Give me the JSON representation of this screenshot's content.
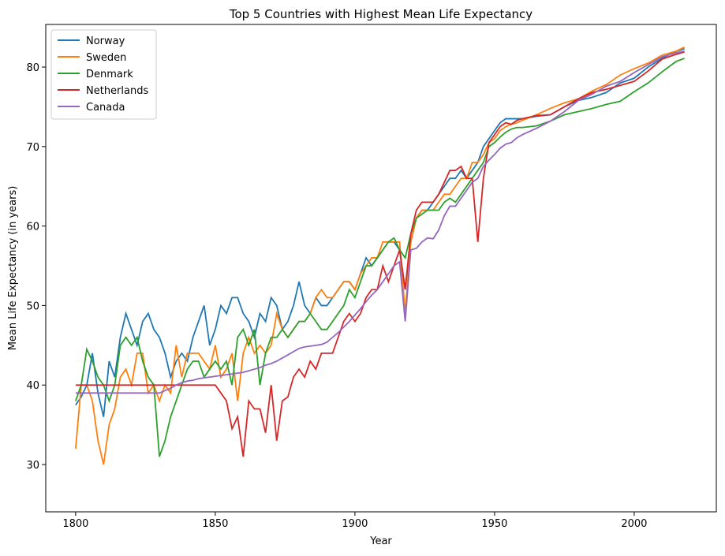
{
  "chart_data": {
    "type": "line",
    "title": "Top 5 Countries with Highest Mean Life Expectancy",
    "x_label": "Year",
    "y_label": "Mean Life Expectancy (in years)",
    "x": [
      1800,
      1802,
      1804,
      1806,
      1808,
      1810,
      1812,
      1814,
      1816,
      1818,
      1820,
      1822,
      1824,
      1826,
      1828,
      1830,
      1832,
      1834,
      1836,
      1838,
      1840,
      1842,
      1844,
      1846,
      1848,
      1850,
      1852,
      1854,
      1856,
      1858,
      1860,
      1862,
      1864,
      1866,
      1868,
      1870,
      1872,
      1874,
      1876,
      1878,
      1880,
      1882,
      1884,
      1886,
      1888,
      1890,
      1892,
      1894,
      1896,
      1898,
      1900,
      1902,
      1904,
      1906,
      1908,
      1910,
      1912,
      1914,
      1916,
      1918,
      1920,
      1922,
      1924,
      1926,
      1928,
      1930,
      1932,
      1934,
      1936,
      1938,
      1940,
      1942,
      1944,
      1946,
      1948,
      1950,
      1952,
      1954,
      1956,
      1958,
      1960,
      1965,
      1970,
      1975,
      1980,
      1985,
      1990,
      1995,
      2000,
      2005,
      2010,
      2015,
      2018
    ],
    "series": [
      {
        "name": "Norway",
        "color": "#1f77b4",
        "values": [
          37.5,
          38.5,
          40,
          44,
          39,
          36,
          43,
          41,
          46,
          49,
          47,
          45,
          48,
          49,
          47,
          46,
          44,
          41,
          43,
          44,
          43,
          46,
          48,
          50,
          45,
          47,
          50,
          49,
          51,
          51,
          49,
          48,
          46,
          49,
          48,
          51,
          50,
          47,
          48,
          50,
          53,
          50,
          49,
          51,
          50,
          50,
          51,
          52,
          53,
          53,
          52,
          54,
          56,
          55,
          56,
          57,
          58,
          58,
          57,
          52,
          58,
          61,
          62,
          62,
          63,
          64,
          65,
          66,
          66,
          67,
          66,
          67,
          68,
          70,
          71,
          72,
          73,
          73.5,
          73.5,
          73.5,
          73.5,
          73.8,
          74,
          75,
          75.8,
          76.2,
          76.8,
          78,
          78.6,
          80,
          81.1,
          82,
          82.3
        ]
      },
      {
        "name": "Sweden",
        "color": "#ff7f0e",
        "values": [
          32,
          40,
          40,
          38,
          33,
          30,
          35,
          37,
          41,
          42,
          40,
          44,
          44,
          39,
          40,
          38,
          40,
          39,
          45,
          41,
          44,
          44,
          44,
          43,
          42,
          45,
          41,
          42,
          44,
          38,
          44,
          46,
          44,
          45,
          44,
          45,
          49,
          47,
          46,
          47,
          48,
          48,
          49,
          51,
          52,
          51,
          51,
          52,
          53,
          53,
          52,
          54,
          55,
          56,
          56,
          58,
          58,
          58,
          58,
          49,
          58,
          61,
          62,
          62,
          62,
          63,
          64,
          64,
          65,
          66,
          66,
          68,
          68,
          69,
          70.5,
          71,
          72,
          72.5,
          72.8,
          73,
          73.3,
          74,
          74.8,
          75.5,
          76,
          77,
          77.8,
          79,
          79.8,
          80.5,
          81.5,
          82,
          82.5
        ]
      },
      {
        "name": "Denmark",
        "color": "#2ca02c",
        "values": [
          38,
          40,
          44.5,
          43,
          41,
          40,
          38,
          40,
          45,
          46,
          45,
          46,
          43,
          41,
          40,
          31,
          33,
          36,
          38,
          40,
          42,
          43,
          43,
          41,
          42,
          43,
          42,
          43,
          40,
          46,
          47,
          45,
          47,
          40,
          44,
          46,
          46,
          47,
          46,
          47,
          48,
          48,
          49,
          48,
          47,
          47,
          48,
          49,
          50,
          52,
          51,
          53,
          55,
          55,
          56,
          57,
          58,
          58.5,
          57,
          56,
          59,
          61,
          61.5,
          62,
          62,
          62,
          63,
          63.5,
          63,
          64,
          65,
          66,
          67,
          68,
          70,
          70.5,
          71.2,
          71.8,
          72.2,
          72.4,
          72.4,
          72.6,
          73.2,
          74,
          74.4,
          74.8,
          75.3,
          75.7,
          76.9,
          78,
          79.4,
          80.7,
          81.1
        ]
      },
      {
        "name": "Netherlands",
        "color": "#d62728",
        "values": [
          40,
          40,
          40,
          40,
          40,
          40,
          40,
          40,
          40,
          40,
          40,
          40,
          40,
          40,
          40,
          40,
          40,
          40,
          40,
          40,
          40,
          40,
          40,
          40,
          40,
          40,
          39,
          38,
          34.5,
          36,
          31,
          38,
          37,
          37,
          34,
          40,
          33,
          38,
          38.5,
          41,
          42,
          41,
          43,
          42,
          44,
          44,
          44,
          46,
          48,
          49,
          48,
          49,
          51,
          52,
          52,
          55,
          53,
          55,
          57,
          52,
          59,
          62,
          63,
          63,
          63,
          64,
          65.5,
          67,
          67,
          67.5,
          66,
          66,
          58,
          66,
          70.5,
          71.5,
          72.5,
          73,
          72.8,
          73.3,
          73.5,
          73.9,
          74,
          75,
          76,
          76.8,
          77.2,
          77.7,
          78.2,
          79.5,
          81,
          81.6,
          81.9
        ]
      },
      {
        "name": "Canada",
        "color": "#9467bd",
        "values": [
          39,
          39,
          39,
          39,
          39,
          39,
          39,
          39,
          39,
          39,
          39,
          39,
          39,
          39,
          39,
          39,
          39.3,
          39.6,
          40,
          40.3,
          40.5,
          40.6,
          40.8,
          40.9,
          41,
          41.1,
          41.2,
          41.3,
          41.4,
          41.5,
          41.6,
          41.8,
          42,
          42.2,
          42.5,
          42.7,
          43,
          43.4,
          43.8,
          44.2,
          44.6,
          44.8,
          44.9,
          45,
          45.1,
          45.4,
          46,
          46.6,
          47.3,
          48,
          48.8,
          49.6,
          50.5,
          51.3,
          52,
          53,
          54,
          55,
          55.5,
          48,
          57,
          57.2,
          58,
          58.5,
          58.4,
          59.5,
          61.3,
          62.5,
          62.5,
          63.5,
          64.5,
          65.5,
          66,
          67.5,
          68.3,
          69,
          69.8,
          70.3,
          70.5,
          71.1,
          71.5,
          72.3,
          73.2,
          74.4,
          75.8,
          76.6,
          77.6,
          78.2,
          79.3,
          80.3,
          81.3,
          81.8,
          82
        ]
      }
    ],
    "xlim": [
      1789.3,
      2029.4
    ],
    "ylim": [
      24.05,
      85.36
    ],
    "xticks": [
      1800,
      1850,
      1900,
      1950,
      2000
    ],
    "yticks": [
      30,
      40,
      50,
      60,
      70,
      80
    ],
    "legend": "upper left"
  }
}
